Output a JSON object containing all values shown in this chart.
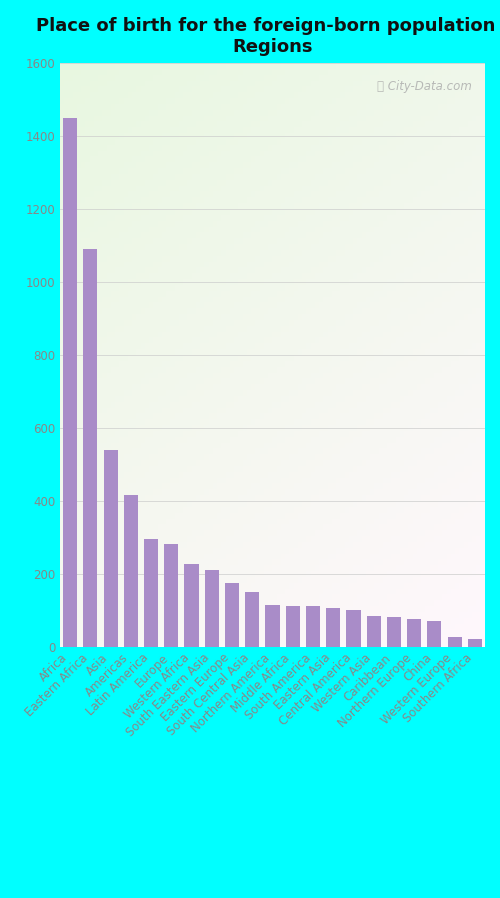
{
  "title": "Place of birth for the foreign-born population -\nRegions",
  "categories": [
    "Africa",
    "Eastern Africa",
    "Asia",
    "Americas",
    "Latin America",
    "Europe",
    "Western Africa",
    "South Eastern Asia",
    "Eastern Europe",
    "South Central Asia",
    "Northern America",
    "Middle Africa",
    "South America",
    "Eastern Asia",
    "Central America",
    "Western Asia",
    "Caribbean",
    "Northern Europe",
    "China",
    "Western Europe",
    "Southern Africa"
  ],
  "values": [
    1450,
    1090,
    540,
    415,
    295,
    280,
    225,
    210,
    175,
    150,
    115,
    110,
    110,
    105,
    100,
    85,
    80,
    75,
    70,
    25,
    20
  ],
  "bar_color": "#a98cc8",
  "background_color": "#00ffff",
  "ylim": [
    0,
    1600
  ],
  "yticks": [
    0,
    200,
    400,
    600,
    800,
    1000,
    1200,
    1400,
    1600
  ],
  "title_fontsize": 13,
  "tick_fontsize": 8.5,
  "watermark": "City-Data.com",
  "grid_color": "#cccccc",
  "tick_color": "#888888"
}
